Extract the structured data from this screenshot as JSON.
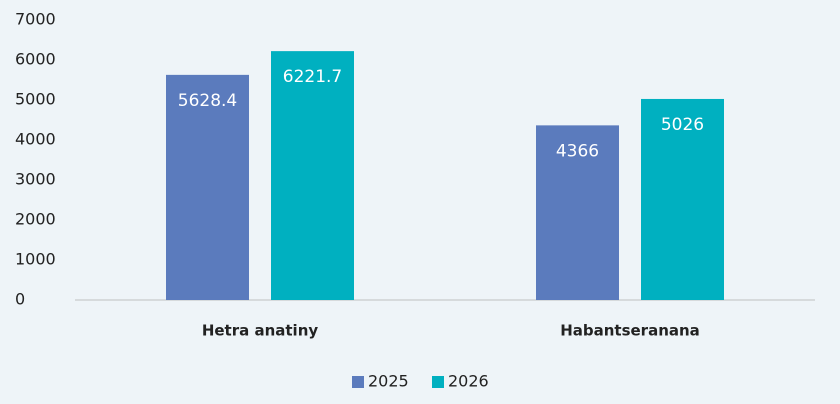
{
  "chart_data": {
    "type": "bar",
    "categories": [
      "Hetra anatiny",
      "Habantseranana"
    ],
    "series": [
      {
        "name": "2025",
        "color": "#5b7bbd",
        "values": [
          5628.4,
          4366
        ]
      },
      {
        "name": "2026",
        "color": "#00b0c0",
        "values": [
          6221.7,
          5026
        ]
      }
    ],
    "ylim": [
      0,
      7000
    ],
    "yticks": [
      0,
      1000,
      2000,
      3000,
      4000,
      5000,
      6000,
      7000
    ],
    "grid": false
  }
}
